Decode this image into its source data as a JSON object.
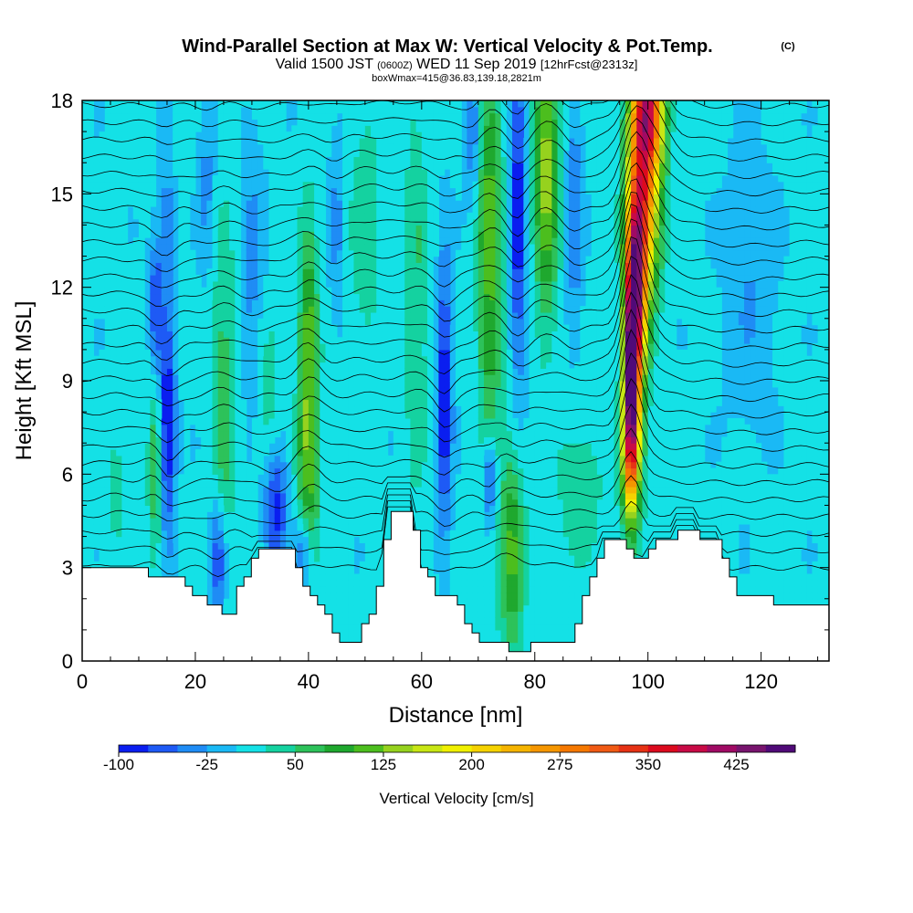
{
  "title": {
    "main": "Wind-Parallel Section at Max W: Vertical Velocity & Pot.Temp.",
    "copyright": "(C)",
    "valid_prefix": "Valid 1500 JST",
    "valid_utc": "(0600Z)",
    "valid_date": "WED 11 Sep 2019",
    "forecast": "[12hrFcst@2313z]",
    "box_info": "boxWmax=415@36.83,139.18,2821m"
  },
  "chart_data": {
    "type": "heatmap",
    "title": "Wind-Parallel Section at Max W: Vertical Velocity & Pot.Temp.",
    "xlabel": "Distance [nm]",
    "ylabel": "Height [Kft MSL]",
    "xlim": [
      0,
      132
    ],
    "ylim": [
      0,
      18
    ],
    "x_ticks": [
      0,
      20,
      40,
      60,
      80,
      100,
      120
    ],
    "x_tick_labels": [
      "0",
      "20",
      "40",
      "60",
      "80",
      "100",
      "120"
    ],
    "y_ticks": [
      0,
      3,
      6,
      9,
      12,
      15,
      18
    ],
    "y_tick_labels": [
      "0",
      "3",
      "6",
      "9",
      "12",
      "15",
      "18"
    ],
    "colorbar": {
      "title": "Vertical Velocity [cm/s]",
      "levels": [
        -100,
        -75,
        -50,
        -25,
        0,
        25,
        50,
        75,
        100,
        125,
        150,
        175,
        200,
        225,
        250,
        275,
        300,
        325,
        350,
        375,
        400,
        425,
        450
      ],
      "labels": [
        "-100",
        "-25",
        "50",
        "125",
        "200",
        "275",
        "350",
        "425"
      ],
      "colors": [
        "#0a1ef0",
        "#1e5af5",
        "#1f8cf5",
        "#1ab9f5",
        "#14e1e6",
        "#14d2a0",
        "#2dc25a",
        "#1fa82e",
        "#4cbe1e",
        "#96d21e",
        "#c8e614",
        "#f0f000",
        "#f5d200",
        "#f5b400",
        "#f59600",
        "#f57800",
        "#f05a14",
        "#e63214",
        "#dc0a1e",
        "#c80a46",
        "#a00a64",
        "#78146e",
        "#500a78"
      ]
    },
    "terrain_kft": [
      [
        0,
        3.0
      ],
      [
        10,
        3.0
      ],
      [
        12,
        2.8
      ],
      [
        14,
        2.6
      ],
      [
        18,
        2.6
      ],
      [
        19,
        2.3
      ],
      [
        21,
        2.0
      ],
      [
        23,
        1.9
      ],
      [
        24,
        1.6
      ],
      [
        26,
        1.6
      ],
      [
        27,
        2.2
      ],
      [
        29,
        3.0
      ],
      [
        31,
        3.6
      ],
      [
        37,
        3.6
      ],
      [
        38,
        2.6
      ],
      [
        40,
        2.2
      ],
      [
        42,
        1.6
      ],
      [
        44,
        1.1
      ],
      [
        45,
        0.7
      ],
      [
        48,
        0.7
      ],
      [
        49,
        1.0
      ],
      [
        51,
        1.7
      ],
      [
        53,
        3.4
      ],
      [
        54,
        4.9
      ],
      [
        58,
        4.9
      ],
      [
        59,
        3.6
      ],
      [
        60,
        2.9
      ],
      [
        62,
        2.3
      ],
      [
        64,
        2.0
      ],
      [
        66,
        2.0
      ],
      [
        68,
        1.1
      ],
      [
        70,
        0.7
      ],
      [
        74,
        0.7
      ],
      [
        75,
        0.4
      ],
      [
        78,
        0.3
      ],
      [
        79,
        0.7
      ],
      [
        81,
        0.7
      ],
      [
        83,
        0.7
      ],
      [
        85,
        0.6
      ],
      [
        86,
        0.7
      ],
      [
        87,
        1.3
      ],
      [
        88,
        1.8
      ],
      [
        89,
        2.6
      ],
      [
        91,
        3.3
      ],
      [
        92,
        3.9
      ],
      [
        95,
        3.9
      ],
      [
        97,
        3.3
      ],
      [
        99,
        3.3
      ],
      [
        101,
        3.9
      ],
      [
        104,
        3.9
      ],
      [
        105,
        4.3
      ],
      [
        108,
        4.3
      ],
      [
        109,
        3.9
      ],
      [
        112,
        3.9
      ],
      [
        114,
        2.9
      ],
      [
        116,
        2.0
      ],
      [
        120,
        2.0
      ],
      [
        122,
        2.0
      ],
      [
        123,
        1.7
      ],
      [
        127,
        1.7
      ],
      [
        132,
        1.7
      ]
    ],
    "updraft_cores": [
      {
        "x": 13,
        "y": 6.0,
        "sx": 1.0,
        "sy": 2.2,
        "w": 70
      },
      {
        "x": 25,
        "y": 8.5,
        "sx": 1.5,
        "sy": 4.0,
        "w": 60
      },
      {
        "x": 33,
        "y": 7.5,
        "sx": 1.5,
        "sy": 2.5,
        "w": 45
      },
      {
        "x": 40,
        "y": 10.0,
        "sx": 1.2,
        "sy": 3.0,
        "w": 110
      },
      {
        "x": 40,
        "y": 6.0,
        "sx": 1.5,
        "sy": 2.0,
        "w": 70
      },
      {
        "x": 50,
        "y": 14.0,
        "sx": 2.0,
        "sy": 3.0,
        "w": 40
      },
      {
        "x": 59,
        "y": 12.0,
        "sx": 1.5,
        "sy": 5.0,
        "w": 45
      },
      {
        "x": 72,
        "y": 13.5,
        "sx": 1.5,
        "sy": 5.0,
        "w": 110
      },
      {
        "x": 76,
        "y": 3.5,
        "sx": 1.5,
        "sy": 2.5,
        "w": 100
      },
      {
        "x": 82,
        "y": 16.0,
        "sx": 1.5,
        "sy": 3.5,
        "w": 135
      },
      {
        "x": 88,
        "y": 5.5,
        "sx": 3.0,
        "sy": 1.8,
        "w": 40
      },
      {
        "x": 97,
        "y": 9.0,
        "sx": 0.9,
        "sy": 2.5,
        "w": 415
      },
      {
        "x": 98,
        "y": 12.0,
        "sx": 1.3,
        "sy": 2.5,
        "w": 320
      },
      {
        "x": 99.5,
        "y": 15.5,
        "sx": 2.0,
        "sy": 2.5,
        "w": 260
      },
      {
        "x": 100,
        "y": 17.8,
        "sx": 2.0,
        "sy": 1.2,
        "w": 230
      },
      {
        "x": 97,
        "y": 6.5,
        "sx": 1.5,
        "sy": 1.5,
        "w": 110
      },
      {
        "x": 6,
        "y": 5.5,
        "sx": 1.5,
        "sy": 1.5,
        "w": 30
      }
    ],
    "downdraft_cores": [
      {
        "x": 15,
        "y": 7.5,
        "sx": 1.0,
        "sy": 2.5,
        "w": -115
      },
      {
        "x": 13,
        "y": 11.5,
        "sx": 0.8,
        "sy": 1.5,
        "w": -80
      },
      {
        "x": 15,
        "y": 14.0,
        "sx": 0.8,
        "sy": 1.5,
        "w": -50
      },
      {
        "x": 24,
        "y": 3.3,
        "sx": 1.0,
        "sy": 1.3,
        "w": -90
      },
      {
        "x": 34,
        "y": 5.0,
        "sx": 1.5,
        "sy": 1.5,
        "w": -110
      },
      {
        "x": 39,
        "y": 3.5,
        "sx": 1.0,
        "sy": 0.8,
        "w": -70
      },
      {
        "x": 30,
        "y": 12.5,
        "sx": 1.5,
        "sy": 3.0,
        "w": -40
      },
      {
        "x": 64,
        "y": 8.5,
        "sx": 0.9,
        "sy": 3.0,
        "w": -110
      },
      {
        "x": 72,
        "y": 5.8,
        "sx": 0.9,
        "sy": 1.0,
        "w": -100
      },
      {
        "x": 77,
        "y": 14.5,
        "sx": 1.0,
        "sy": 4.0,
        "w": -100
      },
      {
        "x": 69,
        "y": 17.0,
        "sx": 1.0,
        "sy": 1.5,
        "w": -60
      },
      {
        "x": 87,
        "y": 14.5,
        "sx": 1.0,
        "sy": 3.0,
        "w": -50
      },
      {
        "x": 22,
        "y": 15.5,
        "sx": 1.0,
        "sy": 2.0,
        "w": -40
      },
      {
        "x": 45,
        "y": 14.0,
        "sx": 1.0,
        "sy": 2.0,
        "w": -40
      },
      {
        "x": 118,
        "y": 12.0,
        "sx": 3.0,
        "sy": 3.0,
        "w": -30
      }
    ],
    "theta_contours": {
      "start_kft": 3.0,
      "spacing_kft": 0.55,
      "count": 28,
      "label_start": 28,
      "label_step": 1,
      "labels_every_n": 2
    }
  }
}
